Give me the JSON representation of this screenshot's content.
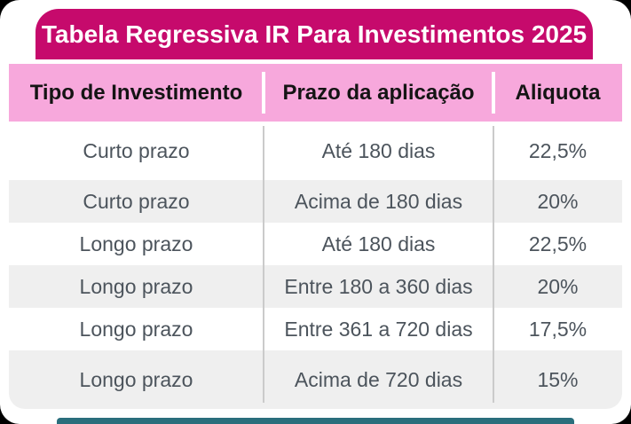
{
  "title": "Tabela Regressiva IR Para Investimentos 2025",
  "table": {
    "headers": [
      "Tipo de Investimento",
      "Prazo da aplicação",
      "Aliquota"
    ],
    "rows": [
      [
        "Curto prazo",
        "Até 180 dias",
        "22,5%"
      ],
      [
        "Curto prazo",
        "Acima de 180 dias",
        "20%"
      ],
      [
        "Longo prazo",
        "Até 180 dias",
        "22,5%"
      ],
      [
        "Longo prazo",
        "Entre 180 a 360 dias",
        "20%"
      ],
      [
        "Longo prazo",
        "Entre 361 a 720 dias",
        "17,5%"
      ],
      [
        "Longo prazo",
        "Acima de 720 dias",
        "15%"
      ]
    ]
  },
  "colors": {
    "title_bar": "#C60A6C",
    "title_text": "#FFFFFF",
    "header_row": "#F7A8DC",
    "header_text": "#141414",
    "row_alt": "#EFEFEF",
    "body_text": "#4C545C",
    "column_divider": "#CBCBCB",
    "bottom_accent": "#2A6E7C",
    "card": "#FFFFFF",
    "background": "#000000"
  },
  "chart_data": {
    "type": "table",
    "title": "Tabela Regressiva IR Para Investimentos 2025",
    "columns": [
      "Tipo de Investimento",
      "Prazo da aplicação",
      "Aliquota"
    ],
    "rows": [
      [
        "Curto prazo",
        "Até 180 dias",
        "22,5%"
      ],
      [
        "Curto prazo",
        "Acima de 180 dias",
        "20%"
      ],
      [
        "Longo prazo",
        "Até 180 dias",
        "22,5%"
      ],
      [
        "Longo prazo",
        "Entre 180 a 360 dias",
        "20%"
      ],
      [
        "Longo prazo",
        "Entre 361 a 720 dias",
        "17,5%"
      ],
      [
        "Longo prazo",
        "Acima de 720 dias",
        "15%"
      ]
    ],
    "aliquota_percent_values": [
      22.5,
      20,
      22.5,
      20,
      17.5,
      15
    ],
    "layout": {
      "striped": true,
      "header_style": "pink-band",
      "title_style": "magenta-band"
    }
  }
}
